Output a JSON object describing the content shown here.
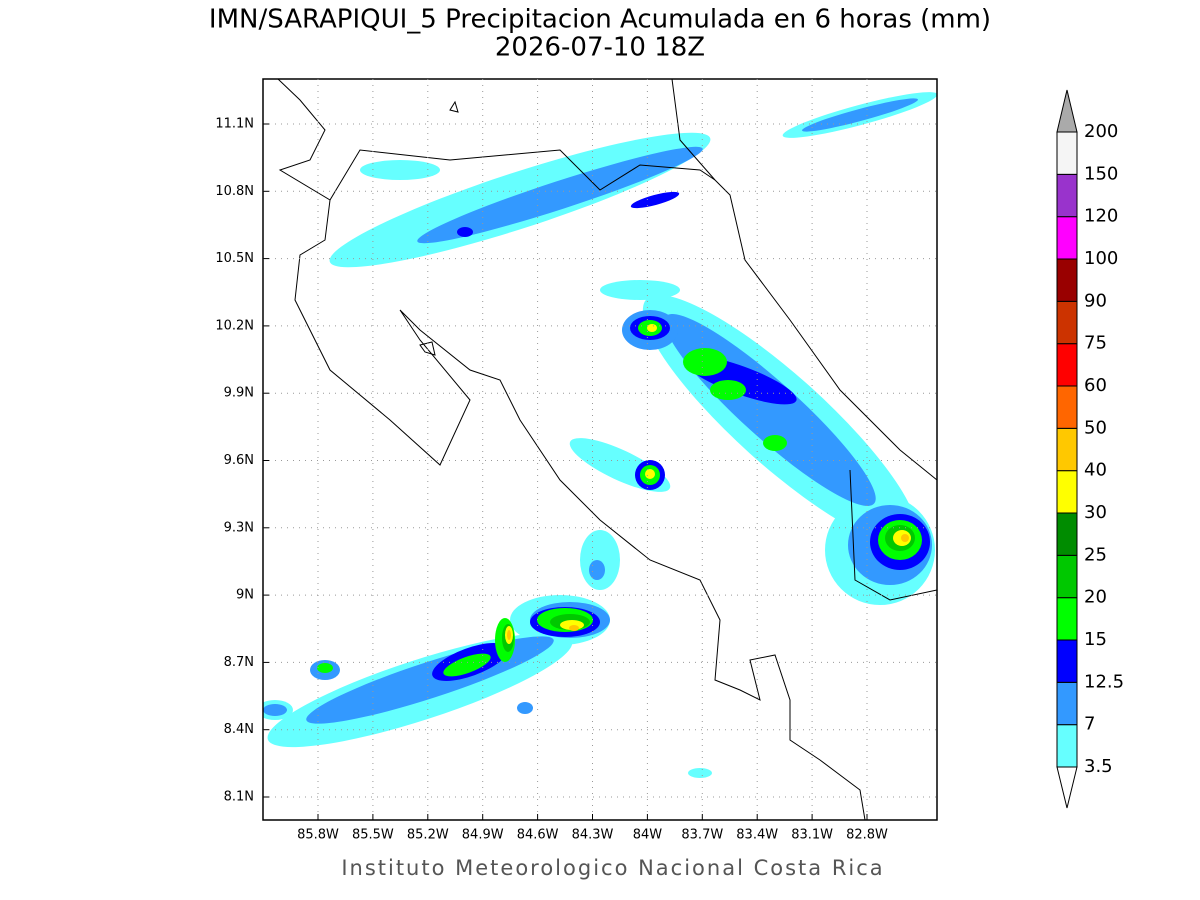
{
  "title": "IMN/SARAPIQUI_5 Precipitacion Acumulada en 6 horas (mm)",
  "subtitle": "2026-07-10 18Z",
  "lon_labels": [
    "85.8W",
    "85.5W",
    "85.2W",
    "84.9W",
    "84.6W",
    "84.3W",
    "84W",
    "83.7W",
    "83.4W",
    "83.1W",
    "82.8W"
  ],
  "lat_labels": [
    "11.1N",
    "10.8N",
    "10.5N",
    "10.2N",
    "9.9N",
    "9.6N",
    "9.3N",
    "9N",
    "8.7N",
    "8.4N",
    "8.1N"
  ],
  "colorbar": {
    "levels": [
      3.5,
      7,
      12.5,
      15,
      20,
      25,
      30,
      40,
      50,
      60,
      75,
      90,
      100,
      120,
      150,
      200
    ],
    "colors": [
      "#ffffff",
      "#66ffff",
      "#3399ff",
      "#0000ff",
      "#00ff00",
      "#00c800",
      "#008c00",
      "#ffff00",
      "#ffc800",
      "#ff6600",
      "#ff0000",
      "#cc3300",
      "#990000",
      "#ff00ff",
      "#9933cc",
      "#f5f5f5",
      "#aaaaaa"
    ]
  },
  "footer": "Instituto Meteorologico Nacional Costa Rica"
}
